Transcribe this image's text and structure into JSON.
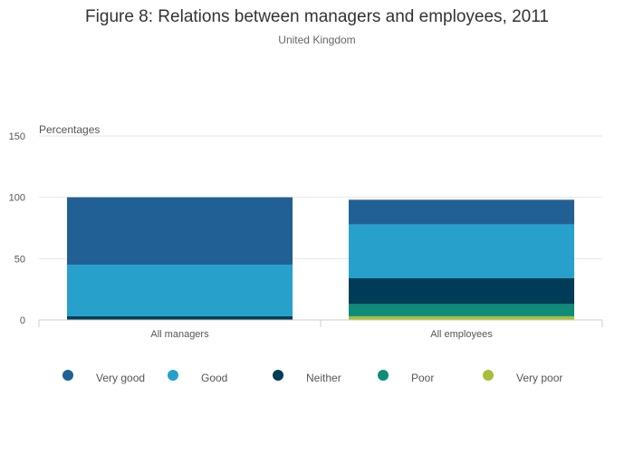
{
  "chart_data": {
    "type": "bar",
    "stacked": true,
    "title": "Figure 8: Relations between managers and employees, 2011",
    "subtitle": "United Kingdom",
    "ylabel": "Percentages",
    "xlabel": "",
    "ylim": [
      0,
      150
    ],
    "yticks": [
      0,
      50,
      100,
      150
    ],
    "grid": true,
    "legend_position": "bottom",
    "categories": [
      "All managers",
      "All employees"
    ],
    "series": [
      {
        "name": "Very poor",
        "color": "#a8bd3a",
        "values": [
          0,
          3
        ]
      },
      {
        "name": "Poor",
        "color": "#0f8c79",
        "values": [
          0,
          10
        ]
      },
      {
        "name": "Neither",
        "color": "#003c57",
        "values": [
          3,
          21
        ]
      },
      {
        "name": "Good",
        "color": "#27a0cc",
        "values": [
          42,
          44
        ]
      },
      {
        "name": "Very good",
        "color": "#206095",
        "values": [
          55,
          20
        ]
      }
    ],
    "legend_order": [
      "Very good",
      "Good",
      "Neither",
      "Poor",
      "Very poor"
    ]
  }
}
